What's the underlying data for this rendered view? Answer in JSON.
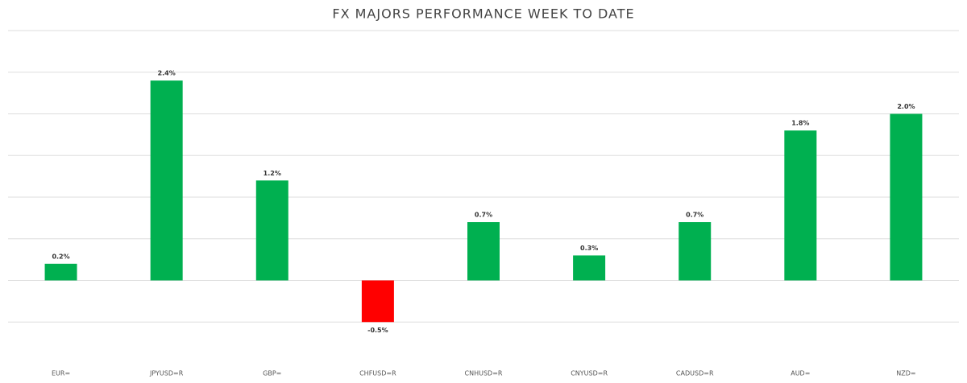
{
  "chart_data": {
    "type": "bar",
    "title": "FX MAJORS PERFORMANCE WEEK TO DATE",
    "categories": [
      "EUR=",
      "JPYUSD=R",
      "GBP=",
      "CHFUSD=R",
      "CNHUSD=R",
      "CNYUSD=R",
      "CADUSD=R",
      "AUD=",
      "NZD="
    ],
    "values": [
      0.2,
      2.4,
      1.2,
      -0.5,
      0.7,
      0.3,
      0.7,
      1.8,
      2.0
    ],
    "value_labels": [
      "0.2%",
      "2.4%",
      "1.2%",
      "-0.5%",
      "0.7%",
      "0.3%",
      "0.7%",
      "1.8%",
      "2.0%"
    ],
    "positive_color": "#00b050",
    "negative_color": "#ff0000",
    "ylim": [
      -1,
      3
    ],
    "yticks": [
      -0.5,
      0,
      0.5,
      1,
      1.5,
      2,
      2.5,
      3
    ],
    "grid": true
  }
}
